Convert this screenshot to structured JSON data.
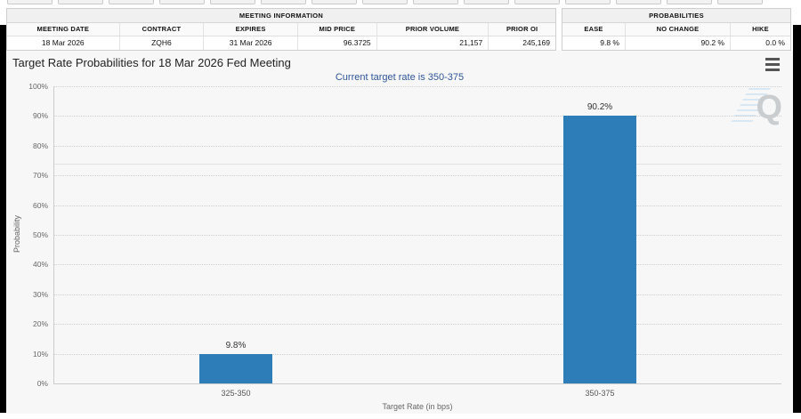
{
  "top_tabs": {
    "count": 15
  },
  "meeting_info_table": {
    "title": "MEETING INFORMATION",
    "columns": [
      "MEETING DATE",
      "CONTRACT",
      "EXPIRES",
      "MID PRICE",
      "PRIOR VOLUME",
      "PRIOR OI"
    ],
    "values": [
      "18 Mar 2026",
      "ZQH6",
      "31 Mar 2026",
      "96.3725",
      "21,157",
      "245,169"
    ]
  },
  "probabilities_table": {
    "title": "PROBABILITIES",
    "columns": [
      "EASE",
      "NO CHANGE",
      "HIKE"
    ],
    "values": [
      "9.8 %",
      "90.2 %",
      "0.0 %"
    ]
  },
  "chart_header": {
    "title": "Target Rate Probabilities for 18 Mar 2026 Fed Meeting",
    "subtitle": "Current target rate is 350-375",
    "menu_icon": "hamburger-icon",
    "watermark_letter": "Q"
  },
  "chart_data": {
    "type": "bar",
    "categories": [
      "325-350",
      "350-375"
    ],
    "values": [
      9.8,
      90.2
    ],
    "bar_labels": [
      "9.8%",
      "90.2%"
    ],
    "title": "Target Rate Probabilities for 18 Mar 2026 Fed Meeting",
    "subtitle": "Current target rate is 350-375",
    "xlabel": "Target Rate (in bps)",
    "ylabel": "Probability",
    "ylim": [
      0,
      100
    ],
    "ytick_step": 10,
    "ytick_suffix": "%",
    "grid": "dotted horizontal",
    "legend": "none",
    "faint_line_y": 74,
    "bar_color": "#2d7eb8"
  },
  "colors": {
    "bar": "#2d7eb8",
    "subtitle_text": "#30569a",
    "chart_background": "#f7f7f7",
    "grid": "#cfcfcf",
    "axis": "#cccccc"
  }
}
